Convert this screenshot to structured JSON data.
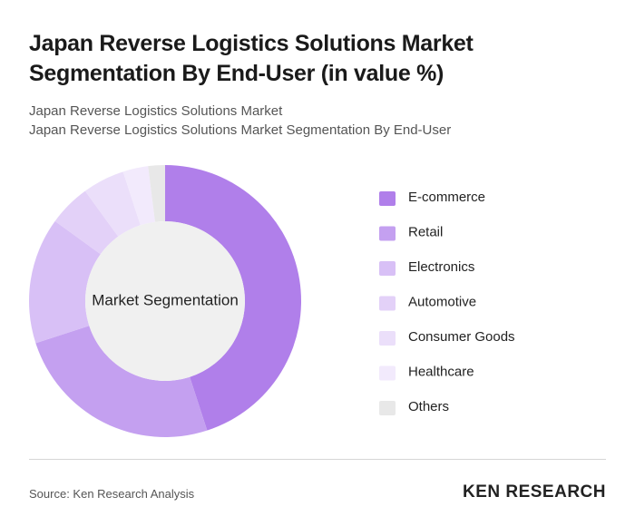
{
  "chart_data": {
    "type": "donut",
    "title": "Japan Reverse Logistics Solutions Market Segmentation By End-User (in value %)",
    "subtitle": "Japan Reverse Logistics Solutions Market",
    "subtitle2": "Japan Reverse Logistics Solutions Market Segmentation By End-User",
    "center_label": "Market Segmentation",
    "categories": [
      "E-commerce",
      "Retail",
      "Electronics",
      "Automotive",
      "Consumer Goods",
      "Healthcare",
      "Others"
    ],
    "values": [
      45,
      25,
      15,
      5,
      5,
      3,
      2
    ],
    "colors": [
      "#b07fea",
      "#c4a0f0",
      "#d8c0f6",
      "#e3d1f8",
      "#ebdffa",
      "#f2eafc",
      "#e8e8e8"
    ],
    "legend": "right"
  },
  "source": "Source: Ken Research Analysis",
  "logo": "KEN RESEARCH"
}
